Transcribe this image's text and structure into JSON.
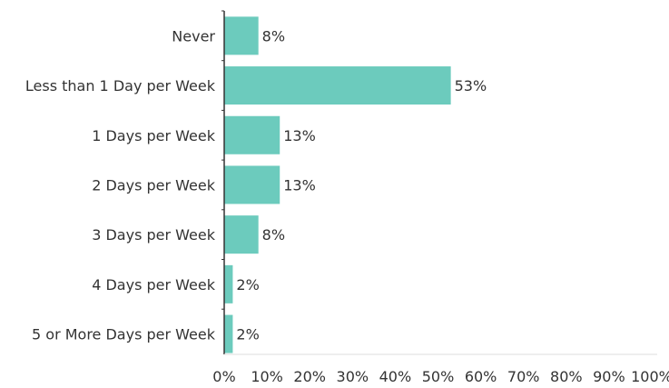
{
  "chart_data": {
    "type": "bar",
    "orientation": "horizontal",
    "categories": [
      "Never",
      "Less than 1 Day per Week",
      "1 Days per Week",
      "2 Days per Week",
      "3 Days per Week",
      "4 Days per Week",
      "5 or More Days per Week"
    ],
    "values": [
      8,
      53,
      13,
      13,
      8,
      2,
      2
    ],
    "value_labels": [
      "8%",
      "53%",
      "13%",
      "13%",
      "8%",
      "2%",
      "2%"
    ],
    "x_ticks": [
      "0%",
      "10%",
      "20%",
      "30%",
      "40%",
      "50%",
      "60%",
      "70%",
      "80%",
      "90%",
      "100%"
    ],
    "xlim": [
      0,
      100
    ],
    "grid": false,
    "bar_color": "#6ccbbd"
  }
}
